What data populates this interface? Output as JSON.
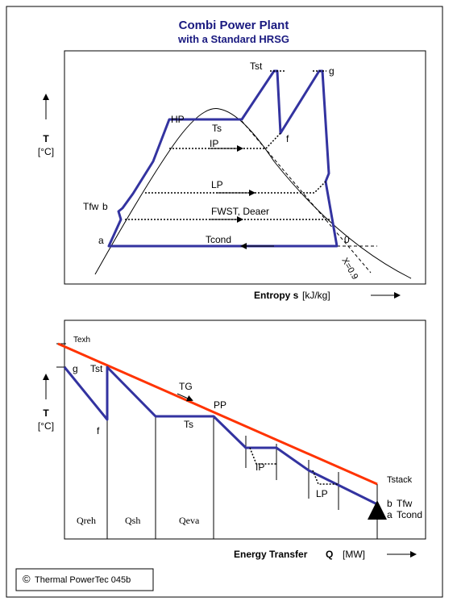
{
  "header": {
    "title": "Combi Power Plant",
    "subtitle": "with a Standard HRSG"
  },
  "ts_diagram": {
    "y_axis": {
      "symbol": "T",
      "unit": "[°C]"
    },
    "labels": {
      "tst": "Tst",
      "g": "g",
      "hp": "HP",
      "ts": "Ts",
      "ip": "IP",
      "f": "f",
      "lp": "LP",
      "tfw": "Tfw",
      "b": "b",
      "fwst": "FWST, Deaer",
      "a": "a",
      "tcond": "Tcond",
      "zero": "0",
      "quality": "X=0.9"
    },
    "x_axis": {
      "name": "Entropy s",
      "unit": "[kJ/kg]"
    }
  },
  "tq_diagram": {
    "y_axis": {
      "symbol": "T",
      "unit": "[°C]"
    },
    "labels": {
      "texh": "Texh",
      "g": "g",
      "tst": "Tst",
      "tg": "TG",
      "pp": "PP",
      "ts": "Ts",
      "f": "f",
      "ip": "IP",
      "lp": "LP",
      "tstack": "Tstack",
      "b": "b",
      "tfw": "Tfw",
      "a": "a",
      "tcond": "Tcond"
    },
    "sections": [
      "Qreh",
      "Qsh",
      "Qeva"
    ],
    "x_axis": {
      "name": "Energy Transfer",
      "symbol": "Q",
      "unit": "[MW]"
    }
  },
  "footer": {
    "copyright": "©",
    "text": "Thermal PowerTec 045b"
  }
}
